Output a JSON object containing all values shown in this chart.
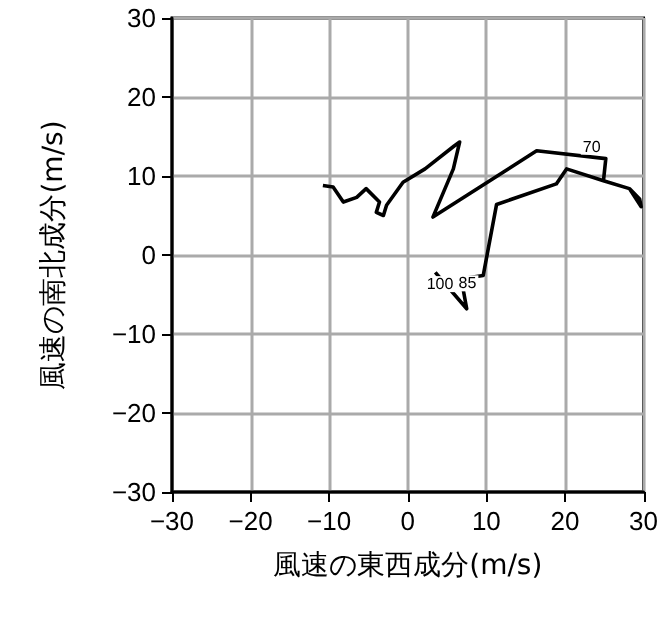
{
  "chart_data": {
    "type": "line",
    "xlabel": "風速の東西成分(m/s)",
    "ylabel": "風速の南北成分(m/s)",
    "x": [
      3.5,
      7.5,
      6.8,
      9.6,
      11.3,
      18.9,
      20.2,
      24.9,
      28.2,
      29.5,
      29.7,
      28.2,
      24.9,
      25.2,
      16.4,
      3.2,
      5.8,
      6.6,
      5.9,
      2.2,
      -0.6,
      -2.7,
      -3.1,
      -4.0,
      -3.6,
      -5.3,
      -6.5,
      -8.2,
      -9.5,
      -10.8
    ],
    "series": [
      {
        "color": "#000000",
        "values": [
          -2.2,
          -6.8,
          -3.0,
          -2.6,
          6.4,
          9.0,
          10.9,
          9.4,
          8.4,
          7.1,
          6.1,
          8.4,
          9.4,
          12.2,
          13.2,
          4.8,
          10.9,
          14.3,
          13.8,
          10.9,
          9.2,
          6.3,
          5.0,
          5.4,
          6.7,
          8.4,
          7.3,
          6.7,
          8.6,
          8.8
        ]
      }
    ],
    "annotations": [
      {
        "text": "100",
        "x": 4.1,
        "y": -4.7
      },
      {
        "text": "85",
        "x": 7.6,
        "y": -4.6
      },
      {
        "text": "70",
        "x": 23.4,
        "y": 12.7
      }
    ],
    "xlim": [
      -30,
      30
    ],
    "ylim": [
      -30,
      30
    ],
    "xticks": [
      -30,
      -20,
      -10,
      0,
      10,
      20,
      30
    ],
    "yticks": [
      -30,
      -20,
      -10,
      0,
      10,
      20,
      30
    ],
    "grid": true,
    "marker": "none",
    "line_style": "solid"
  }
}
